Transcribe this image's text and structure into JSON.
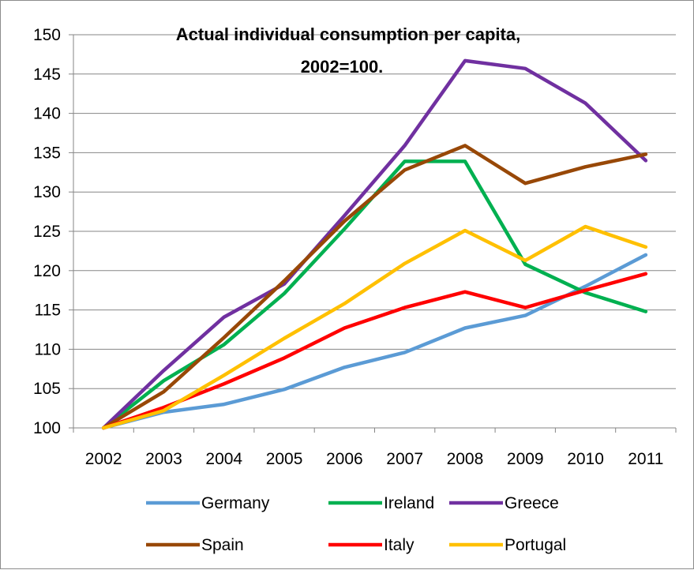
{
  "chart_data": {
    "type": "line",
    "title_lines": [
      "Actual individual consumption per capita,",
      "2002=100."
    ],
    "xlabel": "",
    "ylabel": "",
    "categories": [
      "2002",
      "2003",
      "2004",
      "2005",
      "2006",
      "2007",
      "2008",
      "2009",
      "2010",
      "2011"
    ],
    "ylim": [
      100,
      150
    ],
    "yticks": [
      100,
      105,
      110,
      115,
      120,
      125,
      130,
      135,
      140,
      145,
      150
    ],
    "grid": true,
    "legend_position": "bottom",
    "series": [
      {
        "name": "Germany",
        "color": "#5b9bd5",
        "values": [
          100,
          102.0,
          103.0,
          104.9,
          107.7,
          109.6,
          112.7,
          114.3,
          118.0,
          122.0
        ]
      },
      {
        "name": "Ireland",
        "color": "#00b050",
        "values": [
          100,
          106.0,
          110.6,
          117.1,
          125.3,
          133.9,
          133.9,
          120.8,
          117.2,
          114.8
        ]
      },
      {
        "name": "Greece",
        "color": "#7030a0",
        "values": [
          100,
          107.3,
          114.1,
          118.3,
          127.0,
          135.9,
          146.7,
          145.7,
          141.3,
          134.0
        ]
      },
      {
        "name": "Spain",
        "color": "#984807",
        "values": [
          100,
          104.6,
          111.5,
          118.7,
          126.3,
          132.8,
          135.9,
          131.1,
          133.2,
          134.8
        ]
      },
      {
        "name": "Italy",
        "color": "#ff0000",
        "values": [
          100,
          102.6,
          105.6,
          108.9,
          112.7,
          115.3,
          117.3,
          115.3,
          117.5,
          119.6
        ]
      },
      {
        "name": "Portugal",
        "color": "#ffc000",
        "values": [
          100,
          102.2,
          106.7,
          111.4,
          115.8,
          120.9,
          125.1,
          121.3,
          125.6,
          123.0
        ]
      }
    ]
  }
}
